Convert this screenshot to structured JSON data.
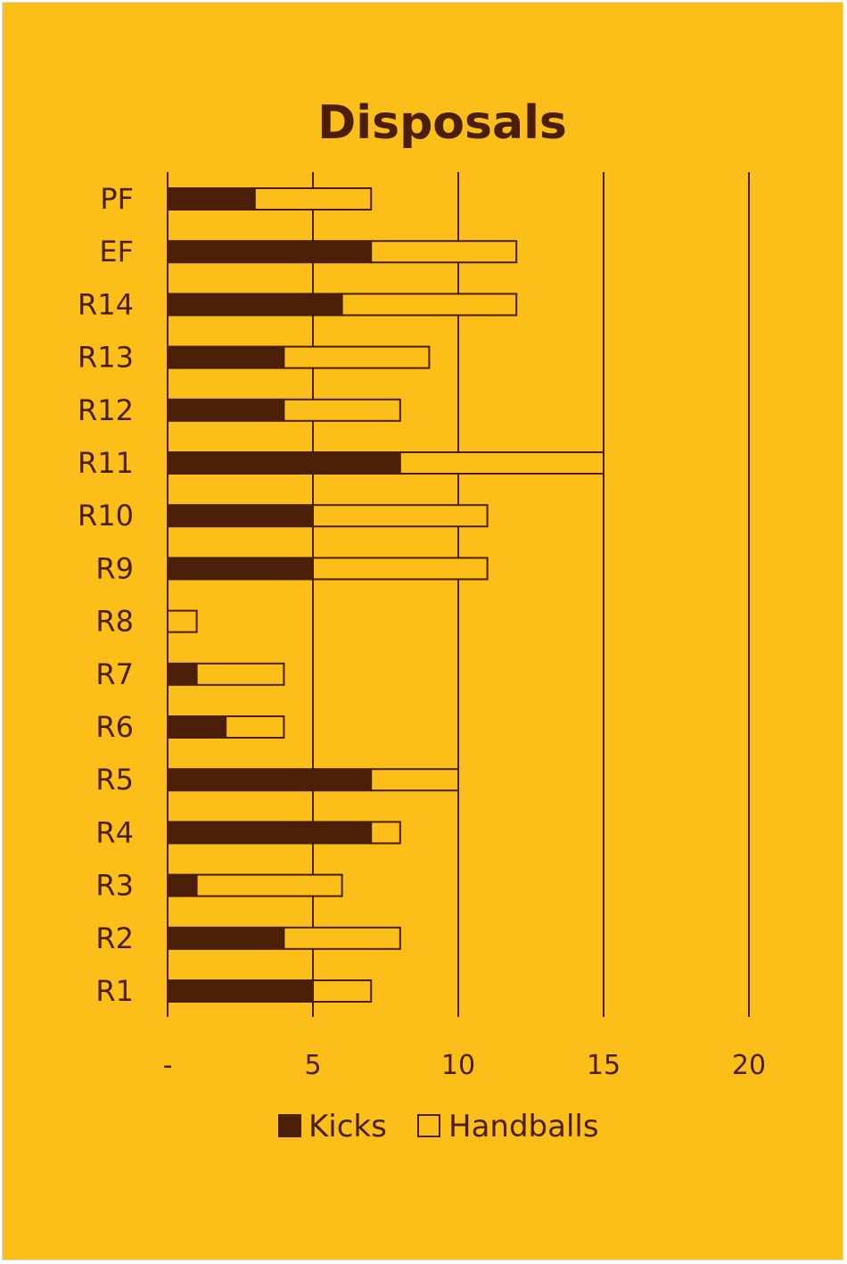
{
  "chart_data": {
    "type": "bar",
    "orientation": "horizontal",
    "stacked": true,
    "title": "Disposals",
    "categories": [
      "PF",
      "EF",
      "R14",
      "R13",
      "R12",
      "R11",
      "R10",
      "R9",
      "R8",
      "R7",
      "R6",
      "R5",
      "R4",
      "R3",
      "R2",
      "R1"
    ],
    "series": [
      {
        "name": "Kicks",
        "values": [
          3,
          7,
          6,
          4,
          4,
          8,
          5,
          5,
          0,
          1,
          2,
          7,
          7,
          1,
          4,
          5
        ]
      },
      {
        "name": "Handballs",
        "values": [
          4,
          5,
          6,
          5,
          4,
          7,
          6,
          6,
          1,
          3,
          2,
          3,
          1,
          5,
          4,
          2
        ]
      }
    ],
    "xlim": [
      0,
      20
    ],
    "xticks": [
      0,
      5,
      10,
      15,
      20
    ],
    "xtick_labels": [
      "-",
      "5",
      "10",
      "15",
      "20"
    ],
    "xlabel": "",
    "ylabel": "",
    "grid": "vertical",
    "legend": "bottom",
    "colors": {
      "background": "#FCBE18",
      "kicks": "#4A1E07",
      "handballs": "#FCBE18",
      "line": "#4A1E07"
    }
  }
}
